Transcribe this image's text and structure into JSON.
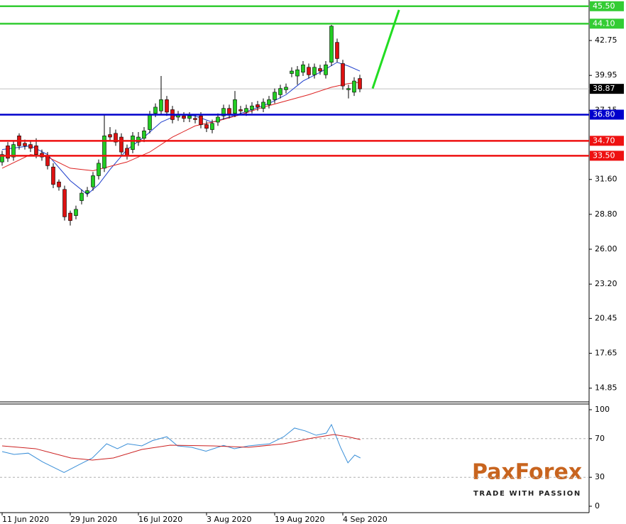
{
  "chart_data": [
    {
      "type": "candlestick",
      "categories": [
        "11 Jun 2020",
        null,
        null,
        null,
        null,
        null,
        null,
        null,
        null,
        null,
        null,
        null,
        "29 Jun 2020",
        null,
        null,
        null,
        null,
        null,
        null,
        null,
        null,
        null,
        null,
        null,
        "16 Jul 2020",
        null,
        null,
        null,
        null,
        null,
        null,
        null,
        null,
        null,
        null,
        null,
        "3 Aug 2020",
        null,
        null,
        null,
        null,
        null,
        null,
        null,
        null,
        null,
        null,
        null,
        "19 Aug 2020",
        null,
        null,
        null,
        null,
        null,
        null,
        null,
        null,
        null,
        null,
        null,
        "4 Sep 2020",
        null,
        null,
        null
      ],
      "open": [
        33.0,
        34.3,
        33.4,
        35.1,
        34.5,
        34.4,
        34.3,
        33.7,
        33.5,
        32.6,
        31.4,
        30.8,
        28.9,
        28.7,
        29.9,
        30.5,
        31.0,
        31.9,
        32.5,
        35.2,
        35.3,
        35.0,
        34.1,
        34.0,
        34.6,
        34.9,
        35.6,
        36.9,
        37.1,
        38.0,
        37.2,
        36.6,
        36.7,
        36.5,
        36.5,
        36.7,
        36.0,
        35.6,
        36.2,
        36.7,
        37.3,
        36.9,
        37.2,
        37.0,
        37.2,
        37.6,
        37.3,
        37.6,
        38.0,
        38.4,
        38.8,
        40.1,
        39.9,
        40.2,
        40.6,
        40.0,
        40.5,
        40.0,
        41.0,
        42.6,
        40.9,
        38.8,
        38.6,
        39.7
      ],
      "high": [
        33.9,
        34.6,
        34.7,
        35.3,
        34.8,
        34.7,
        34.9,
        34.0,
        33.8,
        32.9,
        31.6,
        31.1,
        29.1,
        29.5,
        30.8,
        31.0,
        32.2,
        33.2,
        36.8,
        35.8,
        35.6,
        35.3,
        34.4,
        35.4,
        35.4,
        35.8,
        37.1,
        37.7,
        39.9,
        38.3,
        37.5,
        37.1,
        37.0,
        37.0,
        36.8,
        37.0,
        36.3,
        36.4,
        36.9,
        37.6,
        37.6,
        38.7,
        37.5,
        37.6,
        37.8,
        37.9,
        38.1,
        38.3,
        38.9,
        39.2,
        39.3,
        40.6,
        40.7,
        41.1,
        40.9,
        40.9,
        40.8,
        41.1,
        44.0,
        42.9,
        41.2,
        39.2,
        39.8,
        40.0
      ],
      "low": [
        32.7,
        33.0,
        33.1,
        34.0,
        34.0,
        33.8,
        33.3,
        33.1,
        32.4,
        30.9,
        30.7,
        28.3,
        27.9,
        28.4,
        29.6,
        30.2,
        30.7,
        31.6,
        32.2,
        34.7,
        34.3,
        33.5,
        33.2,
        33.7,
        34.3,
        34.6,
        35.3,
        36.6,
        36.8,
        36.7,
        36.1,
        36.3,
        36.2,
        36.2,
        36.1,
        35.7,
        35.4,
        35.3,
        35.9,
        36.4,
        36.5,
        36.6,
        36.8,
        36.7,
        36.9,
        37.1,
        37.0,
        37.3,
        37.7,
        38.1,
        38.5,
        39.8,
        39.2,
        39.9,
        39.7,
        39.7,
        40.0,
        39.7,
        40.7,
        41.0,
        38.8,
        38.1,
        38.3,
        38.6
      ],
      "close": [
        33.6,
        33.3,
        34.4,
        34.3,
        34.3,
        34.1,
        33.6,
        33.4,
        32.7,
        31.2,
        31.0,
        28.6,
        28.3,
        29.2,
        30.5,
        30.7,
        31.9,
        32.9,
        35.1,
        35.0,
        34.6,
        33.8,
        33.5,
        35.1,
        35.0,
        35.5,
        36.8,
        37.4,
        38.0,
        37.0,
        36.4,
        36.8,
        36.5,
        36.7,
        36.4,
        36.0,
        35.7,
        36.1,
        36.6,
        37.3,
        36.8,
        38.0,
        37.1,
        37.3,
        37.5,
        37.4,
        37.8,
        38.0,
        38.6,
        38.9,
        39.0,
        40.3,
        40.4,
        40.8,
        40.0,
        40.6,
        40.3,
        40.8,
        43.9,
        41.3,
        39.1,
        38.9,
        39.5,
        38.87
      ],
      "up_color": "#22cc22",
      "down_color": "#dd1111",
      "ylim": [
        13.75,
        46.0
      ],
      "yticks": [
        14.85,
        17.65,
        20.45,
        {
          "value": 23.2,
          "label": "23.20"
        },
        {
          "value": 26,
          "label": "26.00"
        },
        {
          "value": 28.8,
          "label": "28.80"
        },
        {
          "value": 31.6,
          "label": "31.60"
        },
        37.15,
        39.95,
        42.75
      ],
      "overlays": [
        {
          "color": "#1f3fcc",
          "x": [
            0,
            5,
            8,
            12,
            15,
            17,
            19,
            22,
            25,
            28,
            31,
            34,
            37,
            40,
            44,
            47,
            50,
            53,
            56,
            59,
            61,
            63
          ],
          "values": [
            34.0,
            34.3,
            33.6,
            31.5,
            30.4,
            31.2,
            32.4,
            34.0,
            35.0,
            36.2,
            36.8,
            36.7,
            36.2,
            36.6,
            37.2,
            37.7,
            38.4,
            39.5,
            40.2,
            41.0,
            40.7,
            40.3
          ]
        },
        {
          "color": "#dd2222",
          "x": [
            0,
            5,
            8,
            12,
            16,
            22,
            26,
            30,
            34,
            38,
            42,
            46,
            50,
            54,
            58,
            61,
            63
          ],
          "values": [
            32.5,
            33.6,
            33.4,
            32.5,
            32.3,
            33.0,
            33.8,
            35.0,
            35.9,
            36.3,
            36.8,
            37.4,
            37.9,
            38.4,
            39.0,
            39.3,
            39.4
          ]
        }
      ],
      "levels": [
        {
          "value": 45.5,
          "label": "45.50",
          "color": "#33cc33"
        },
        {
          "value": 44.1,
          "label": "44.10",
          "color": "#33cc33"
        },
        {
          "value": 36.8,
          "label": "36.80",
          "color": "#0000cc"
        },
        {
          "value": 34.7,
          "label": "34.70",
          "color": "#ee1111"
        },
        {
          "value": 33.5,
          "label": "33.50",
          "color": "#ee1111"
        }
      ],
      "last_price": 38.87,
      "trendline": {
        "color": "#22dd22",
        "x": [
          65.25,
          69.9
        ],
        "values": [
          38.9,
          45.2
        ]
      }
    },
    {
      "type": "line",
      "ylim": [
        0,
        100
      ],
      "yticks": [
        0,
        30,
        70,
        100
      ],
      "grid": "dashed",
      "series": [
        {
          "color": "#3a8fd8",
          "x": [
            0,
            2.1,
            4.6,
            7.1,
            10.9,
            13.4,
            15.9,
            18.4,
            20.3,
            22.1,
            24.6,
            26.5,
            29,
            30.9,
            33.4,
            35.9,
            39,
            40.9,
            43.4,
            47.1,
            49.6,
            51.5,
            53.4,
            55.3,
            57.1,
            58,
            59.6,
            60.9,
            62.1,
            63.1
          ],
          "values": [
            56.6,
            53.7,
            55,
            46,
            35,
            42.6,
            50,
            64.7,
            59.6,
            64.7,
            62.5,
            68,
            72,
            62.5,
            61,
            57,
            63,
            59.6,
            62.5,
            64.7,
            72,
            81,
            78,
            73.5,
            75.7,
            84.6,
            61,
            45,
            53,
            50
          ]
        },
        {
          "color": "#cc2222",
          "x": [
            0,
            5.9,
            12.1,
            15.9,
            19.6,
            24.6,
            29.6,
            37.1,
            43.4,
            49.6,
            54.6,
            58.4,
            60.9,
            63.1
          ],
          "values": [
            62.5,
            59.6,
            50,
            47.8,
            50,
            58.8,
            63.2,
            62.5,
            61,
            64.7,
            70.6,
            74.3,
            72,
            69
          ]
        }
      ]
    }
  ],
  "logo": {
    "name": "PaxForex",
    "tagline": "TRADE WITH PASSION"
  }
}
